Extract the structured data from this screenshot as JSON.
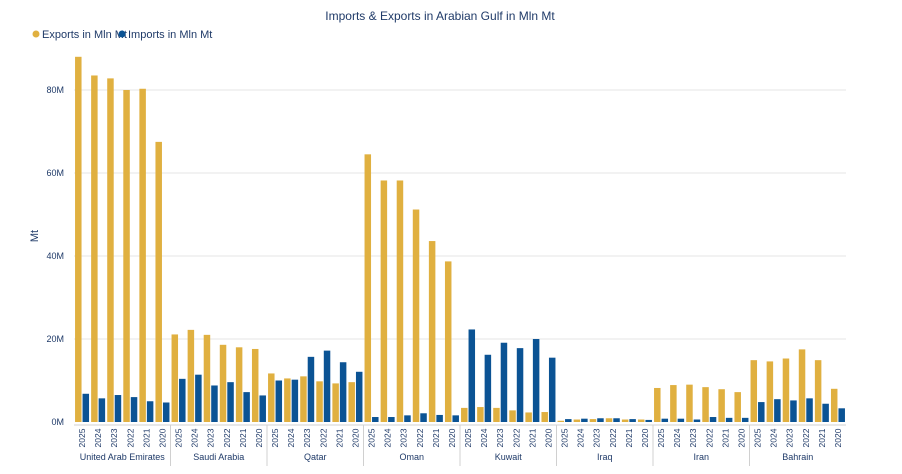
{
  "chart_data": {
    "type": "bar",
    "title": "Imports & Exports in Arabian Gulf in Mln Mt",
    "xlabel": "",
    "ylabel": "Mt",
    "ylim": [
      0,
      90000000
    ],
    "yticks": [
      {
        "value": 0,
        "label": "0M"
      },
      {
        "value": 20000000,
        "label": "20M"
      },
      {
        "value": 40000000,
        "label": "40M"
      },
      {
        "value": 60000000,
        "label": "60M"
      },
      {
        "value": 80000000,
        "label": "80M"
      }
    ],
    "legend": {
      "position": "top-left"
    },
    "years": [
      "2025",
      "2024",
      "2023",
      "2022",
      "2021",
      "2020"
    ],
    "groups": [
      "United Arab Emirates",
      "Saudi Arabia",
      "Qatar",
      "Oman",
      "Kuwait",
      "Iraq",
      "Iran",
      "Bahrain"
    ],
    "series": [
      {
        "name": "Exports in Mln Mt",
        "color": "#E0B040",
        "values": [
          [
            88000000,
            83500000,
            82800000,
            80000000,
            80300000,
            67500000
          ],
          [
            21100000,
            22200000,
            21000000,
            18600000,
            18000000,
            17600000
          ],
          [
            11700000,
            10500000,
            11000000,
            9800000,
            9300000,
            9600000
          ],
          [
            64500000,
            58200000,
            58200000,
            51200000,
            43600000,
            38700000
          ],
          [
            3400000,
            3600000,
            3400000,
            2800000,
            2300000,
            2400000
          ],
          [
            300000,
            600000,
            700000,
            900000,
            600000,
            600000
          ],
          [
            8200000,
            8900000,
            9000000,
            8400000,
            7900000,
            7200000
          ],
          [
            14900000,
            14600000,
            15300000,
            17500000,
            14900000,
            8000000
          ]
        ]
      },
      {
        "name": "Imports in Mln Mt",
        "color": "#0B5394",
        "values": [
          [
            6800000,
            5700000,
            6500000,
            6000000,
            5000000,
            4700000
          ],
          [
            10400000,
            11400000,
            8800000,
            9600000,
            7200000,
            6400000
          ],
          [
            10000000,
            10200000,
            15700000,
            17200000,
            14400000,
            12100000
          ],
          [
            1200000,
            1200000,
            1600000,
            2100000,
            1700000,
            1600000
          ],
          [
            22300000,
            16200000,
            19100000,
            17800000,
            20000000,
            15500000
          ],
          [
            700000,
            800000,
            900000,
            900000,
            700000,
            500000
          ],
          [
            800000,
            800000,
            600000,
            1200000,
            1000000,
            1000000
          ],
          [
            4800000,
            5500000,
            5200000,
            5700000,
            4400000,
            3300000
          ]
        ]
      }
    ]
  }
}
